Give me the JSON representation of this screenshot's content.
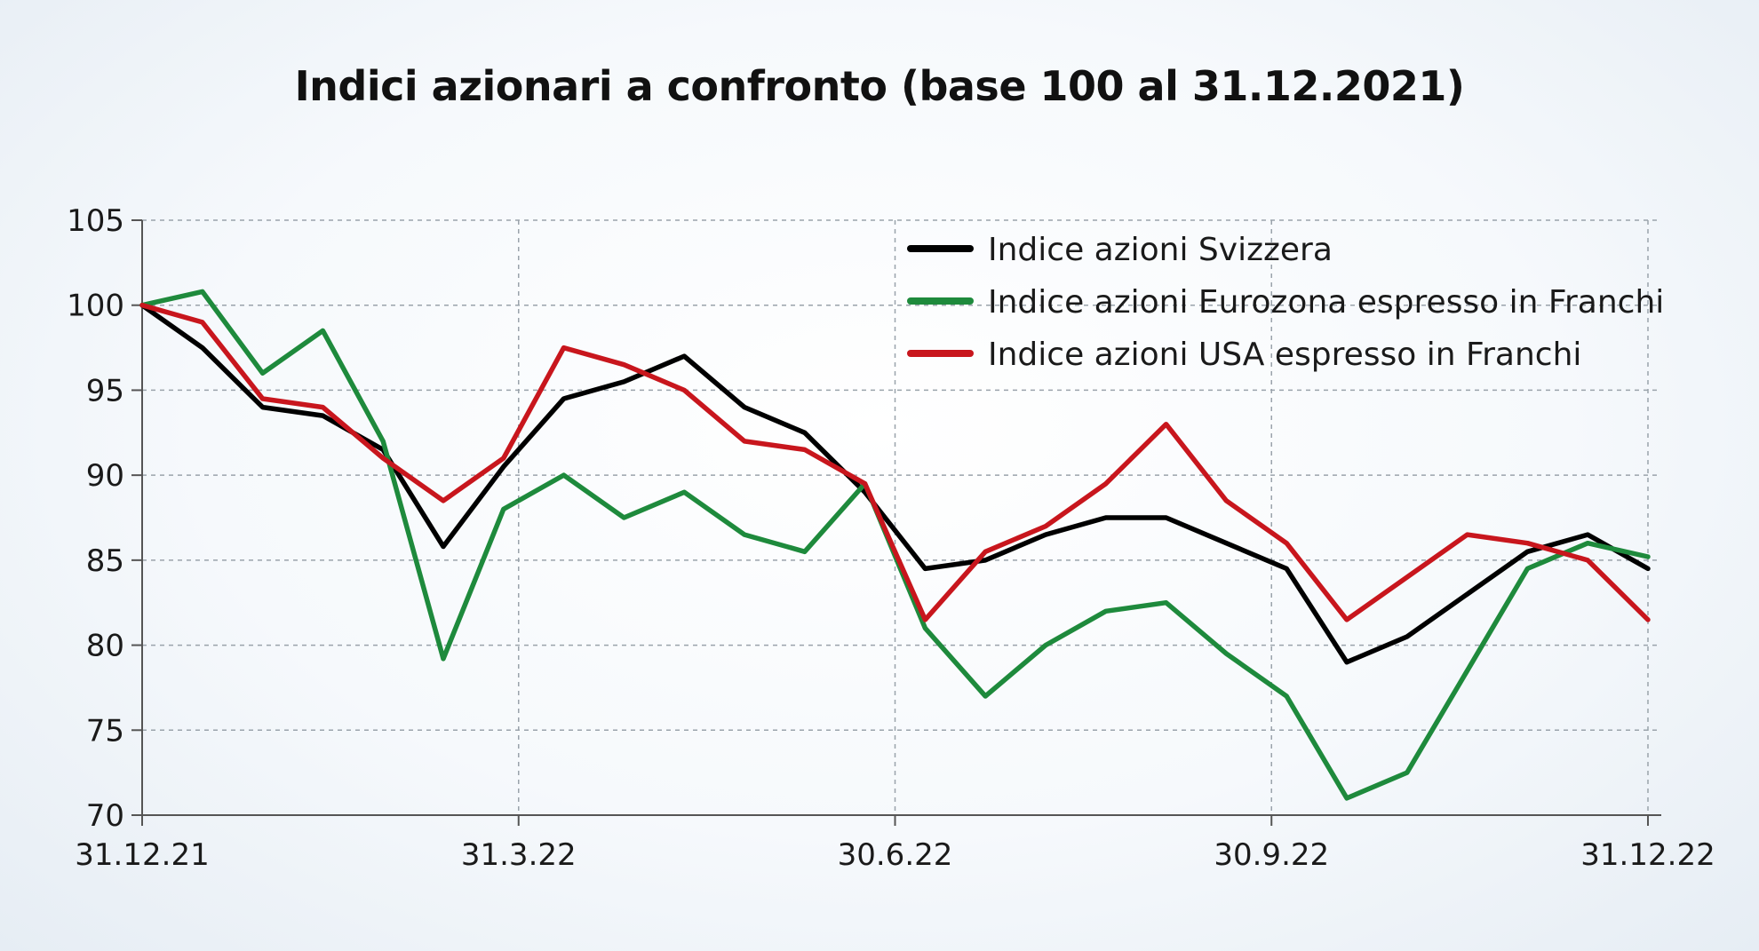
{
  "chart_data": {
    "type": "line",
    "title": "Indici azionari a confronto (base 100 al 31.12.2021)",
    "xlabel": "",
    "ylabel": "",
    "ylim": [
      70,
      105
    ],
    "yticks": [
      70,
      75,
      80,
      85,
      90,
      95,
      100,
      105
    ],
    "xticks": [
      "31.12.21",
      "31.3.22",
      "30.6.22",
      "30.9.22",
      "31.12.22"
    ],
    "grid": true,
    "legend_position": "top-right",
    "x": [
      "31.12.21",
      "14.1.22",
      "31.1.22",
      "14.2.22",
      "28.2.22",
      "7.3.22",
      "14.3.22",
      "31.3.22",
      "14.4.22",
      "29.4.22",
      "13.5.22",
      "31.5.22",
      "15.6.22",
      "30.6.22",
      "15.7.22",
      "29.7.22",
      "15.8.22",
      "31.8.22",
      "15.9.22",
      "30.9.22",
      "14.10.22",
      "31.10.22",
      "15.11.22",
      "30.11.22",
      "15.12.22",
      "31.12.22"
    ],
    "series": [
      {
        "name": "Indice azioni Svizzera",
        "color": "#000000",
        "values": [
          100,
          97.5,
          94.0,
          93.5,
          91.5,
          85.8,
          90.5,
          94.5,
          95.5,
          97.0,
          94.0,
          92.5,
          89.0,
          84.5,
          85.0,
          86.5,
          87.5,
          87.5,
          86.0,
          84.5,
          79.0,
          80.5,
          83.0,
          85.5,
          86.5,
          84.5
        ]
      },
      {
        "name": "Indice azioni Eurozona espresso in Franchi",
        "color": "#1e8a3c",
        "values": [
          100,
          100.8,
          96.0,
          98.5,
          92.0,
          79.2,
          88.0,
          90.0,
          87.5,
          89.0,
          86.5,
          85.5,
          89.5,
          81.0,
          77.0,
          80.0,
          82.0,
          82.5,
          79.5,
          77.0,
          71.0,
          72.5,
          78.5,
          84.5,
          86.0,
          85.2
        ]
      },
      {
        "name": "Indice azioni USA espresso in Franchi",
        "color": "#c8161d",
        "values": [
          100,
          99.0,
          94.5,
          94.0,
          91.0,
          88.5,
          91.0,
          97.5,
          96.5,
          95.0,
          92.0,
          91.5,
          89.5,
          81.5,
          85.5,
          87.0,
          89.5,
          93.0,
          88.5,
          86.0,
          81.5,
          84.0,
          86.5,
          86.0,
          85.0,
          81.5
        ]
      }
    ]
  }
}
